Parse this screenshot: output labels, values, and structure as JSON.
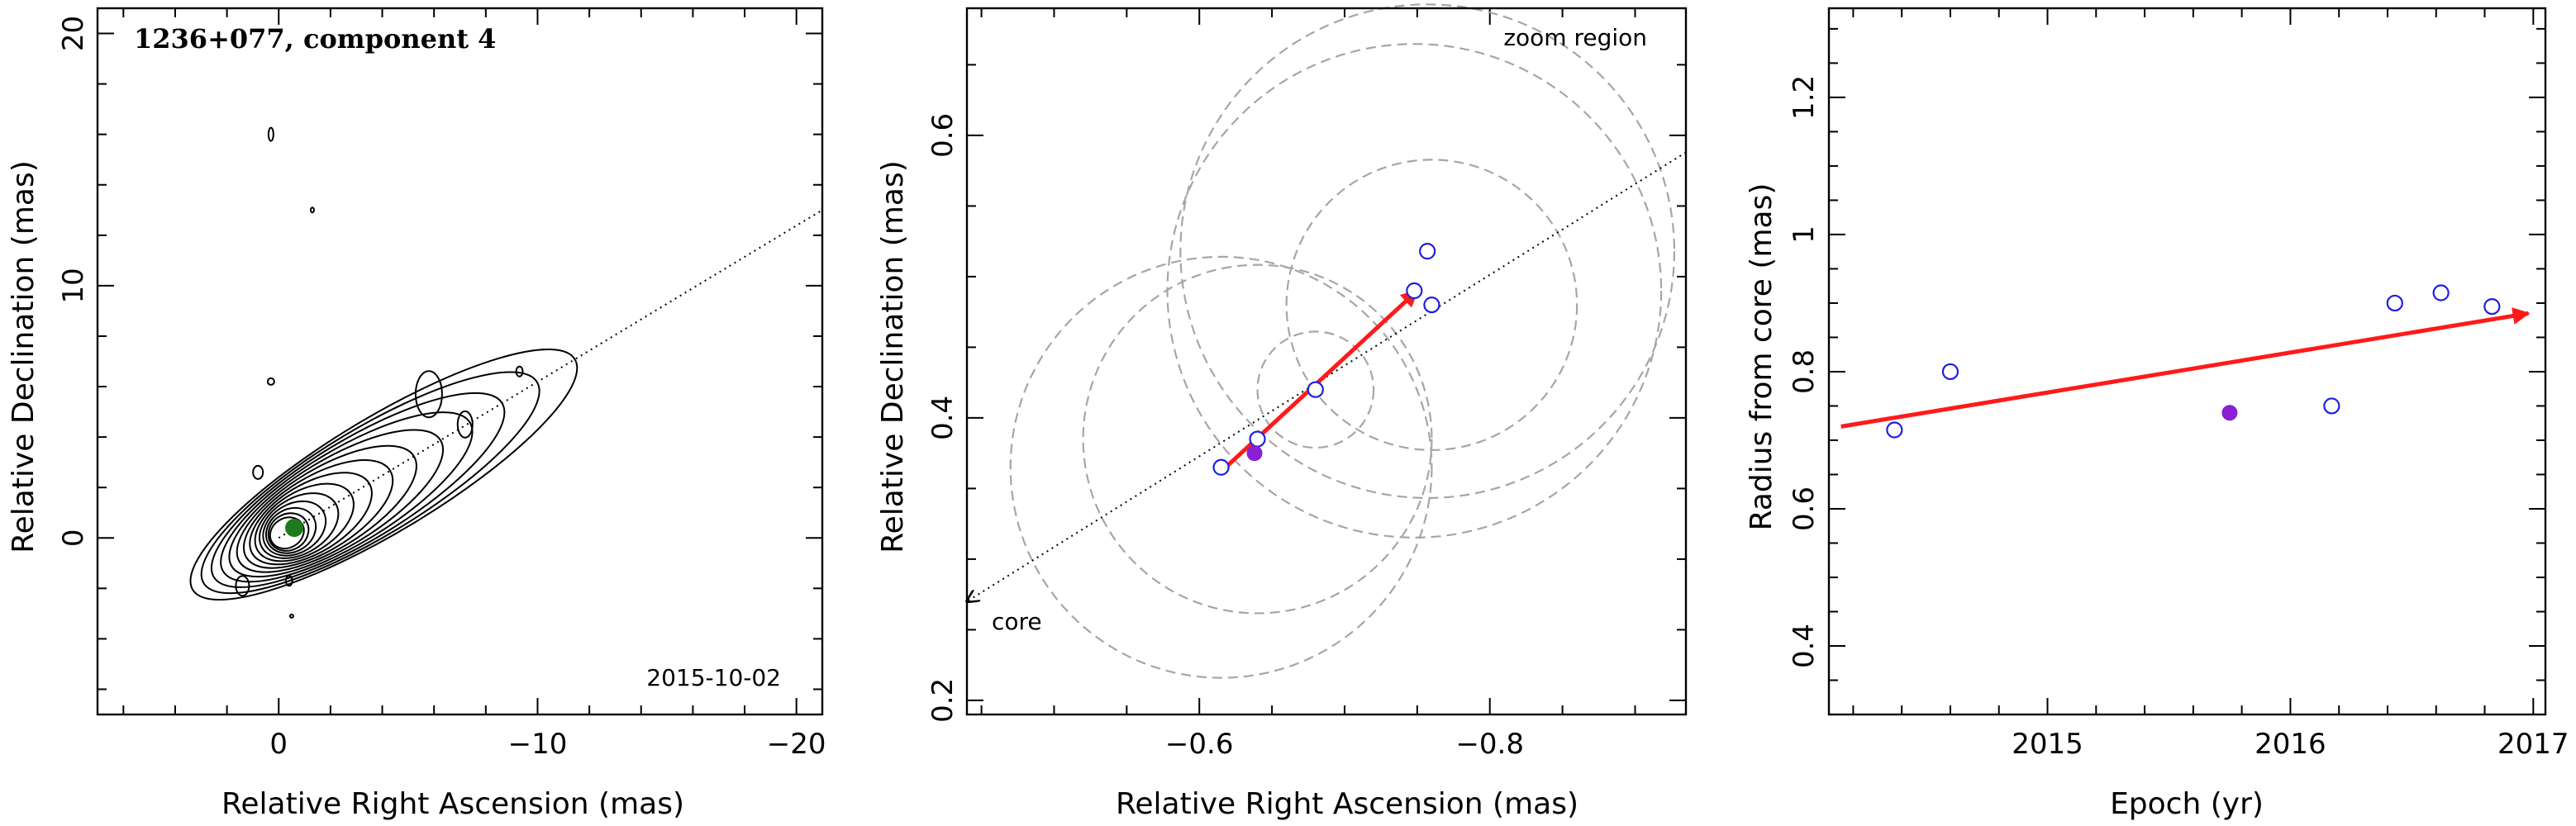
{
  "chart_data": [
    {
      "type": "contour",
      "title": "1236+077, component 4",
      "epoch_label": "2015-10-02",
      "xlabel": "Relative Right Ascension (mas)",
      "ylabel": "Relative Declination (mas)",
      "xlim": [
        7,
        -21
      ],
      "ylim": [
        -7,
        21
      ],
      "xticks": [
        0,
        -10,
        -20
      ],
      "xtick_labels": [
        "0",
        "−10",
        "−20"
      ],
      "yticks": [
        0,
        10,
        20
      ],
      "ytick_labels": [
        "0",
        "10",
        "20"
      ],
      "component_position": [
        -0.6,
        0.4
      ],
      "component_color": "#1f7a1f",
      "jet_direction_line": {
        "from": [
          0,
          0
        ],
        "to": [
          -21,
          13
        ]
      },
      "contour_levels": 14
    },
    {
      "type": "scatter",
      "title": "",
      "region_label": "zoom region",
      "core_label": "core",
      "xlabel": "Relative Right Ascension (mas)",
      "ylabel": "Relative Declination (mas)",
      "xlim": [
        -0.44,
        -0.935
      ],
      "ylim": [
        0.19,
        0.69
      ],
      "xticks": [
        -0.6,
        -0.8
      ],
      "xtick_labels": [
        "−0.6",
        "−0.8"
      ],
      "yticks": [
        0.2,
        0.4,
        0.6
      ],
      "ytick_labels": [
        "0.2",
        "0.4",
        "0.6"
      ],
      "points": [
        {
          "x": -0.615,
          "y": 0.365
        },
        {
          "x": -0.64,
          "y": 0.385
        },
        {
          "x": -0.68,
          "y": 0.42
        },
        {
          "x": -0.748,
          "y": 0.49
        },
        {
          "x": -0.757,
          "y": 0.518
        },
        {
          "x": -0.76,
          "y": 0.48
        }
      ],
      "highlight_point": {
        "x": -0.638,
        "y": 0.375
      },
      "error_circles": [
        {
          "x": -0.615,
          "y": 0.365,
          "r": 0.145
        },
        {
          "x": -0.64,
          "y": 0.385,
          "r": 0.12
        },
        {
          "x": -0.68,
          "y": 0.42,
          "r": 0.04
        },
        {
          "x": -0.748,
          "y": 0.49,
          "r": 0.17
        },
        {
          "x": -0.757,
          "y": 0.518,
          "r": 0.17
        },
        {
          "x": -0.76,
          "y": 0.48,
          "r": 0.1
        }
      ],
      "motion_vector": {
        "from": [
          -0.615,
          0.362
        ],
        "to": [
          -0.75,
          0.49
        ],
        "color": "#ff1a1a"
      },
      "core_direction_line": {
        "from": [
          -0.935,
          0.588
        ],
        "to": [
          -0.44,
          0.27
        ]
      }
    },
    {
      "type": "scatter",
      "title": "",
      "xlabel": "Epoch (yr)",
      "ylabel": "Radius from core (mas)",
      "xlim": [
        2014.1,
        2017.05
      ],
      "ylim": [
        0.3,
        1.33
      ],
      "xticks": [
        2015,
        2016,
        2017
      ],
      "xtick_labels": [
        "2015",
        "2016",
        "2017"
      ],
      "yticks": [
        0.4,
        0.6,
        0.8,
        1.0,
        1.2
      ],
      "ytick_labels": [
        "0.4",
        "0.6",
        "0.8",
        "1",
        "1.2"
      ],
      "points": [
        {
          "x": 2014.37,
          "y": 0.715
        },
        {
          "x": 2014.6,
          "y": 0.8
        },
        {
          "x": 2016.17,
          "y": 0.75
        },
        {
          "x": 2016.43,
          "y": 0.9
        },
        {
          "x": 2016.62,
          "y": 0.915
        },
        {
          "x": 2016.83,
          "y": 0.895
        }
      ],
      "highlight_point": {
        "x": 2015.75,
        "y": 0.74
      },
      "trend_vector": {
        "from": [
          2014.15,
          0.72
        ],
        "to": [
          2016.98,
          0.885
        ],
        "color": "#ff1a1a"
      }
    }
  ]
}
